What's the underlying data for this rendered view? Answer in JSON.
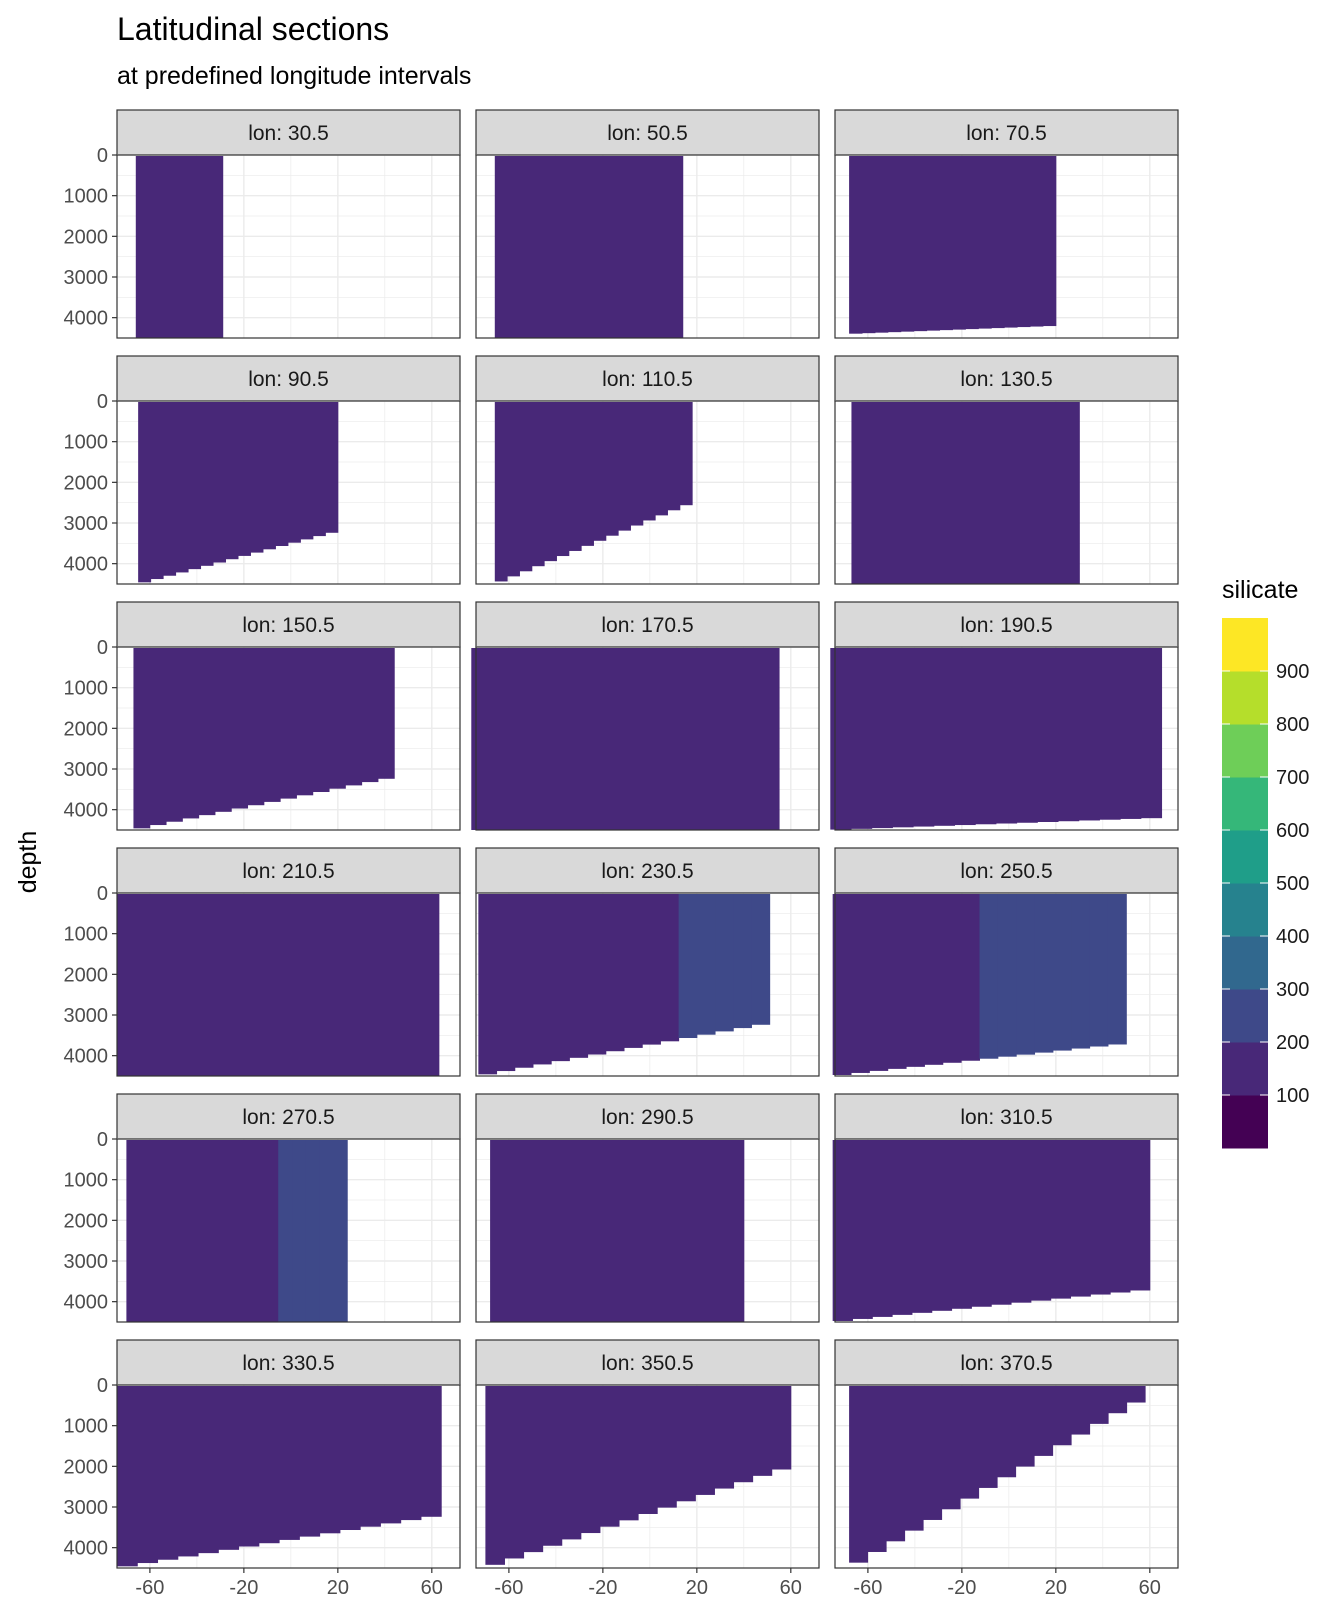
{
  "chart_data": {
    "type": "heatmap",
    "title": "Latitudinal sections",
    "subtitle": "at predefined longitude intervals",
    "xlabel": "",
    "ylabel": "depth",
    "xlim": [
      -74,
      72
    ],
    "xticks": [
      -60,
      -20,
      20,
      60
    ],
    "ylim": [
      0,
      4500
    ],
    "yticks": [
      0,
      1000,
      2000,
      3000,
      4000
    ],
    "y_reversed": true,
    "facet_labels": [
      "lon: 30.5",
      "lon: 50.5",
      "lon: 70.5",
      "lon: 90.5",
      "lon: 110.5",
      "lon: 130.5",
      "lon: 150.5",
      "lon: 170.5",
      "lon: 190.5",
      "lon: 210.5",
      "lon: 230.5",
      "lon: 250.5",
      "lon: 270.5",
      "lon: 290.5",
      "lon: 310.5",
      "lon: 330.5",
      "lon: 350.5",
      "lon: 370.5"
    ],
    "legend": {
      "title": "silicate",
      "placement": "right",
      "breaks": [
        "100",
        "200",
        "300",
        "400",
        "500",
        "600",
        "700",
        "800",
        "900"
      ],
      "colors": [
        "#440154",
        "#482878",
        "#3e4989",
        "#31688e",
        "#26828e",
        "#1f9e89",
        "#35b779",
        "#6ece58",
        "#b5de2b",
        "#fde725"
      ]
    },
    "panels": [
      {
        "lat_range": [
          -66,
          -29
        ],
        "max_depth": [
          4500,
          4500
        ],
        "mean_silicate": [
          100,
          100
        ]
      },
      {
        "lat_range": [
          -66,
          14
        ],
        "max_depth": [
          4500,
          4500
        ],
        "mean_silicate": [
          100,
          150
        ]
      },
      {
        "lat_range": [
          -68,
          20
        ],
        "max_depth": [
          4400,
          4200
        ],
        "mean_silicate": [
          100,
          150
        ]
      },
      {
        "lat_range": [
          -65,
          20
        ],
        "max_depth": [
          4500,
          3200
        ],
        "mean_silicate": [
          100,
          150
        ]
      },
      {
        "lat_range": [
          -66,
          18
        ],
        "max_depth": [
          4500,
          2500
        ],
        "mean_silicate": [
          100,
          150
        ]
      },
      {
        "lat_range": [
          -67,
          30
        ],
        "max_depth": [
          4500,
          4500
        ],
        "mean_silicate": [
          100,
          150
        ]
      },
      {
        "lat_range": [
          -67,
          44
        ],
        "max_depth": [
          4500,
          3200
        ],
        "mean_silicate": [
          100,
          150
        ]
      },
      {
        "lat_range": [
          -76,
          55
        ],
        "max_depth": [
          4500,
          4500
        ],
        "mean_silicate": [
          100,
          150
        ]
      },
      {
        "lat_range": [
          -76,
          65
        ],
        "max_depth": [
          4500,
          4200
        ],
        "mean_silicate": [
          100,
          150
        ]
      },
      {
        "lat_range": [
          -74,
          63
        ],
        "max_depth": [
          4500,
          4500
        ],
        "mean_silicate": [
          100,
          150
        ]
      },
      {
        "lat_range": [
          -73,
          51
        ],
        "max_depth": [
          4500,
          3200
        ],
        "mean_silicate": [
          100,
          250
        ]
      },
      {
        "lat_range": [
          -75,
          50
        ],
        "max_depth": [
          4500,
          3700
        ],
        "mean_silicate": [
          100,
          300
        ]
      },
      {
        "lat_range": [
          -70,
          24
        ],
        "max_depth": [
          4500,
          4500
        ],
        "mean_silicate": [
          100,
          250
        ]
      },
      {
        "lat_range": [
          -68,
          40
        ],
        "max_depth": [
          4500,
          4500
        ],
        "mean_silicate": [
          100,
          100
        ]
      },
      {
        "lat_range": [
          -75,
          60
        ],
        "max_depth": [
          4500,
          3700
        ],
        "mean_silicate": [
          100,
          100
        ]
      },
      {
        "lat_range": [
          -74,
          64
        ],
        "max_depth": [
          4500,
          3200
        ],
        "mean_silicate": [
          100,
          100
        ]
      },
      {
        "lat_range": [
          -70,
          60
        ],
        "max_depth": [
          4500,
          2000
        ],
        "mean_silicate": [
          100,
          100
        ]
      },
      {
        "lat_range": [
          -68,
          58
        ],
        "max_depth": [
          4500,
          300
        ],
        "mean_silicate": [
          100,
          100
        ]
      }
    ]
  }
}
